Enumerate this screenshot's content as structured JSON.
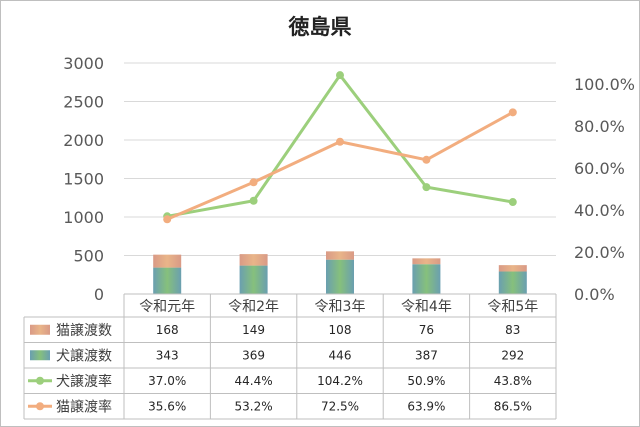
{
  "chart_data": {
    "type": "bar",
    "title": "徳島県",
    "categories": [
      "令和元年",
      "令和2年",
      "令和3年",
      "令和4年",
      "令和5年"
    ],
    "y_left": {
      "range": [
        0,
        3000
      ],
      "ticks": [
        "0",
        "500",
        "1000",
        "1500",
        "2000",
        "2500",
        "3000"
      ]
    },
    "y_right": {
      "range": [
        0,
        1.1
      ],
      "ticks": [
        "0.0%",
        "20.0%",
        "40.0%",
        "60.0%",
        "80.0%",
        "100.0%"
      ]
    },
    "gridlines": true,
    "legend": "data-table",
    "series": [
      {
        "name": "猫譲渡数",
        "type": "bar",
        "stack": "counts",
        "axis": "left",
        "color": "#e4a27e",
        "values": [
          168,
          149,
          108,
          76,
          83
        ],
        "labels": [
          "168",
          "149",
          "108",
          "76",
          "83"
        ]
      },
      {
        "name": "犬譲渡数",
        "type": "bar",
        "stack": "counts",
        "axis": "left",
        "color": "#6cb7a3",
        "values": [
          343,
          369,
          446,
          387,
          292
        ],
        "labels": [
          "343",
          "369",
          "446",
          "387",
          "292"
        ]
      },
      {
        "name": "犬譲渡率",
        "type": "line",
        "axis": "right",
        "color": "#9ccf7c",
        "values": [
          0.37,
          0.444,
          1.042,
          0.509,
          0.438
        ],
        "labels": [
          "37.0%",
          "44.4%",
          "104.2%",
          "50.9%",
          "43.8%"
        ]
      },
      {
        "name": "猫譲渡率",
        "type": "line",
        "axis": "right",
        "color": "#f2ad7f",
        "values": [
          0.356,
          0.532,
          0.725,
          0.639,
          0.865
        ],
        "labels": [
          "35.6%",
          "53.2%",
          "72.5%",
          "63.9%",
          "86.5%"
        ]
      }
    ]
  }
}
